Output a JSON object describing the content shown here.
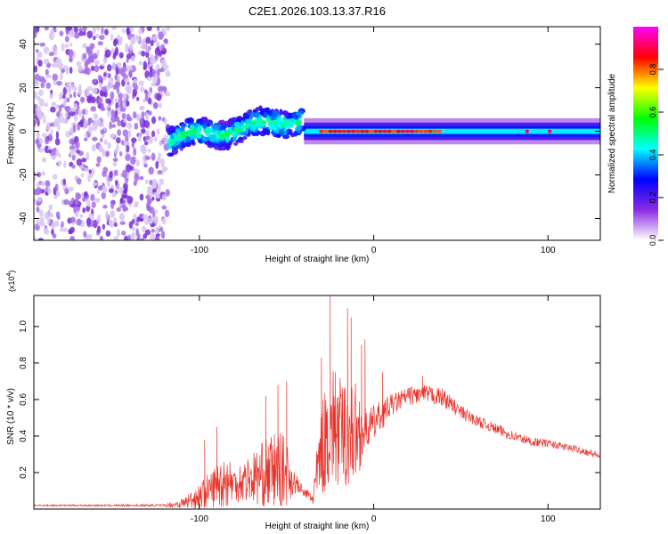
{
  "figure": {
    "title": "C2E1.2026.103.13.37.R16"
  },
  "colors": {
    "axis": "#000000",
    "snr_line": "#e8332c",
    "background": "#ffffff"
  },
  "chart_data": [
    {
      "type": "heatmap",
      "name": "spectrogram",
      "xlabel": "Height of straight line (km)",
      "ylabel": "Frequency (Hz)",
      "xlim": [
        -195,
        130
      ],
      "ylim": [
        -50,
        48
      ],
      "x_tick_labels": [
        "-100",
        "0",
        "100"
      ],
      "x_tick_values": [
        -100,
        0,
        100
      ],
      "y_tick_labels": [
        "-40",
        "-20",
        "0",
        "20",
        "40"
      ],
      "y_tick_values": [
        -40,
        -20,
        0,
        20,
        40
      ],
      "colorbar": {
        "label": "Normalized spectral amplitude",
        "range": [
          0,
          1
        ],
        "tick_labels": [
          "0.0",
          "0.2",
          "0.4",
          "0.6",
          "0.8"
        ],
        "tick_values": [
          0,
          0.2,
          0.4,
          0.6,
          0.8
        ],
        "colormap": [
          "#ffffff",
          "#8a2be2",
          "#0000ff",
          "#00ffff",
          "#00ff00",
          "#ffff00",
          "#ff0000",
          "#ff00ff"
        ]
      },
      "regions": [
        {
          "kind": "noise",
          "x_range": [
            -195,
            -118
          ],
          "freq_range": [
            -50,
            48
          ],
          "amplitude": 0.05
        },
        {
          "kind": "signal-ramp",
          "x_range": [
            -118,
            -40
          ],
          "freq_start": -4,
          "freq_end": 6,
          "amplitude": 0.25
        },
        {
          "kind": "signal-flat",
          "x_range": [
            -40,
            130
          ],
          "freq": 0,
          "amplitude": 0.35
        },
        {
          "kind": "peak",
          "x_range": [
            -30,
            40
          ],
          "freq": 0,
          "amplitude": 0.9
        }
      ]
    },
    {
      "type": "line",
      "name": "snr",
      "xlabel": "Height of straight line (km)",
      "ylabel": "SNR (10 * v/v)",
      "y_scale_label": "(x10",
      "y_scale_exponent": "4",
      "y_scale_suffix": ")",
      "xlim": [
        -195,
        130
      ],
      "ylim": [
        0,
        1.17
      ],
      "x_tick_labels": [
        "-100",
        "0",
        "100"
      ],
      "x_tick_values": [
        -100,
        0,
        100
      ],
      "y_tick_labels": [
        "0.2",
        "0.4",
        "0.6",
        "0.8",
        "1.0"
      ],
      "y_tick_values": [
        0.2,
        0.4,
        0.6,
        0.8,
        1.0
      ],
      "series": [
        {
          "name": "SNR",
          "envelope": {
            "x": [
              -195,
              -120,
              -110,
              -100,
              -90,
              -85,
              -80,
              -70,
              -60,
              -55,
              -50,
              -45,
              -40,
              -35,
              -30,
              -25,
              -20,
              -15,
              -10,
              -5,
              0,
              10,
              20,
              30,
              40,
              50,
              60,
              70,
              80,
              90,
              100,
              110,
              120,
              130
            ],
            "mid": [
              0.02,
              0.02,
              0.03,
              0.07,
              0.13,
              0.16,
              0.14,
              0.17,
              0.2,
              0.22,
              0.2,
              0.14,
              0.09,
              0.06,
              0.32,
              0.46,
              0.4,
              0.42,
              0.42,
              0.43,
              0.47,
              0.57,
              0.62,
              0.63,
              0.61,
              0.53,
              0.48,
              0.44,
              0.4,
              0.37,
              0.36,
              0.34,
              0.32,
              0.29
            ],
            "amp": [
              0.004,
              0.006,
              0.03,
              0.07,
              0.12,
              0.16,
              0.1,
              0.14,
              0.2,
              0.22,
              0.18,
              0.06,
              0.02,
              0.05,
              0.25,
              0.35,
              0.32,
              0.3,
              0.28,
              0.12,
              0.1,
              0.06,
              0.05,
              0.05,
              0.05,
              0.04,
              0.03,
              0.03,
              0.03,
              0.025,
              0.02,
              0.02,
              0.02,
              0.02
            ]
          },
          "peaks": [
            [
              -97,
              0.38
            ],
            [
              -90,
              0.45
            ],
            [
              -62,
              0.62
            ],
            [
              -55,
              0.68
            ],
            [
              -50,
              0.7
            ],
            [
              -30,
              0.83
            ],
            [
              -25,
              1.17
            ],
            [
              -22,
              0.75
            ],
            [
              -15,
              1.1
            ],
            [
              -13,
              1.05
            ],
            [
              -7,
              0.9
            ],
            [
              -5,
              0.93
            ],
            [
              5,
              0.75
            ],
            [
              28,
              0.73
            ]
          ]
        }
      ]
    }
  ]
}
